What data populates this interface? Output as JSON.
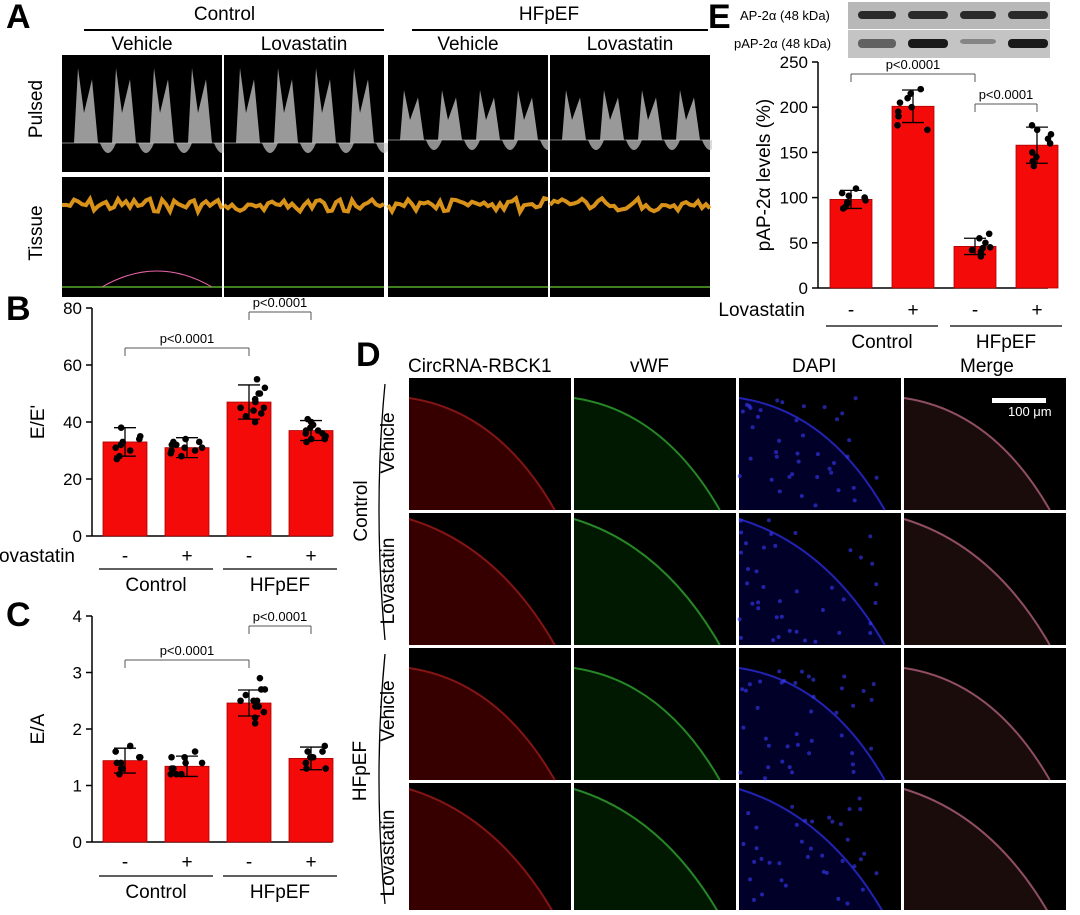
{
  "panel_letters": {
    "a": "A",
    "b": "B",
    "c": "C",
    "d": "D",
    "e": "E"
  },
  "panelA": {
    "groups": [
      "Control",
      "HFpEF"
    ],
    "treatments": [
      "Vehicle",
      "Lovastatin",
      "Vehicle",
      "Lovastatin"
    ],
    "rows": [
      "Pulsed",
      "Tissue"
    ]
  },
  "chart_data": [
    {
      "panel": "B",
      "type": "bar",
      "categories": [
        "-",
        "+",
        "-",
        "+"
      ],
      "row_label": "Lovastatin",
      "groups": [
        {
          "label": "Control",
          "span": [
            0,
            1
          ]
        },
        {
          "label": "HFpEF",
          "span": [
            2,
            3
          ]
        }
      ],
      "values": [
        33,
        31,
        47,
        37
      ],
      "errors": [
        5,
        3.5,
        6,
        3.5
      ],
      "points": [
        [
          28,
          31,
          34,
          38,
          30,
          27,
          35,
          33,
          32
        ],
        [
          29,
          31,
          34,
          32,
          30,
          28,
          31,
          33,
          30,
          32,
          33
        ],
        [
          40,
          44,
          52,
          47,
          50,
          42,
          45,
          55,
          48,
          43,
          50,
          45
        ],
        [
          33,
          36,
          40,
          37,
          34,
          38,
          35,
          41,
          36,
          39,
          37,
          34
        ]
      ],
      "ylabel": "E/E'",
      "ylim": [
        0,
        80
      ],
      "yticks": [
        0,
        20,
        40,
        60,
        80
      ],
      "comparisons": [
        {
          "from": 0,
          "to": 2,
          "label": "p<0.0001"
        },
        {
          "from": 2,
          "to": 3,
          "label": "p<0.0001"
        }
      ]
    },
    {
      "panel": "C",
      "type": "bar",
      "categories": [
        "-",
        "+",
        "-",
        "+"
      ],
      "groups": [
        {
          "label": "Control",
          "span": [
            0,
            1
          ]
        },
        {
          "label": "HFpEF",
          "span": [
            2,
            3
          ]
        }
      ],
      "values": [
        1.44,
        1.34,
        2.46,
        1.48
      ],
      "errors": [
        0.22,
        0.18,
        0.23,
        0.2
      ],
      "points": [
        [
          1.2,
          1.6,
          1.5,
          1.3,
          1.7,
          1.4,
          1.5,
          1.3,
          1.4
        ],
        [
          1.2,
          1.5,
          1.4,
          1.3,
          1.6,
          1.2,
          1.4,
          1.3,
          1.5,
          1.2
        ],
        [
          2.2,
          2.5,
          2.7,
          2.4,
          2.9,
          2.6,
          2.3,
          2.5,
          2.1,
          2.7,
          2.4,
          2.5
        ],
        [
          1.3,
          1.6,
          1.5,
          1.4,
          1.7,
          1.5,
          1.3,
          1.6,
          1.4,
          1.5
        ]
      ],
      "ylabel": "E/A",
      "ylim": [
        0,
        4
      ],
      "yticks": [
        0,
        1,
        2,
        3,
        4
      ],
      "comparisons": [
        {
          "from": 0,
          "to": 2,
          "label": "p<0.0001"
        },
        {
          "from": 2,
          "to": 3,
          "label": "p<0.0001"
        }
      ]
    },
    {
      "panel": "E",
      "type": "bar",
      "categories": [
        "-",
        "+",
        "-",
        "+"
      ],
      "row_label": "Lovastatin",
      "groups": [
        {
          "label": "Control",
          "span": [
            0,
            1
          ]
        },
        {
          "label": "HFpEF",
          "span": [
            2,
            3
          ]
        }
      ],
      "values": [
        98,
        201,
        46,
        158
      ],
      "errors": [
        10,
        18,
        9,
        20
      ],
      "points": [
        [
          90,
          105,
          100,
          95,
          110,
          88,
          97,
          102,
          93
        ],
        [
          180,
          215,
          200,
          190,
          220,
          210,
          175,
          205,
          195
        ],
        [
          40,
          55,
          45,
          38,
          50,
          42,
          60,
          44,
          35
        ],
        [
          140,
          165,
          175,
          150,
          160,
          145,
          170,
          135,
          180
        ]
      ],
      "ylabel": "pAP-2α levels (%)",
      "ylim": [
        0,
        250
      ],
      "yticks": [
        0,
        50,
        100,
        150,
        200,
        250
      ],
      "comparisons": [
        {
          "from": 0,
          "to": 2,
          "label": "p<0.0001"
        },
        {
          "from": 2,
          "to": 3,
          "label": "p<0.0001"
        }
      ]
    }
  ],
  "blot": {
    "row1": "AP-2α (48 kDa)",
    "row2": "pAP-2α (48 kDa)"
  },
  "panelD": {
    "channels": [
      "CircRNA-RBCK1",
      "vWF",
      "DAPI",
      "Merge"
    ],
    "channel_colors": [
      "#c8201e",
      "#2e8b2e",
      "#2020b0",
      "#000000"
    ],
    "rows": [
      "Vehicle",
      "Lovastatin",
      "Vehicle",
      "Lovastatin"
    ],
    "groups": [
      "Control",
      "HFpEF"
    ],
    "scalebar": "100 μm"
  }
}
